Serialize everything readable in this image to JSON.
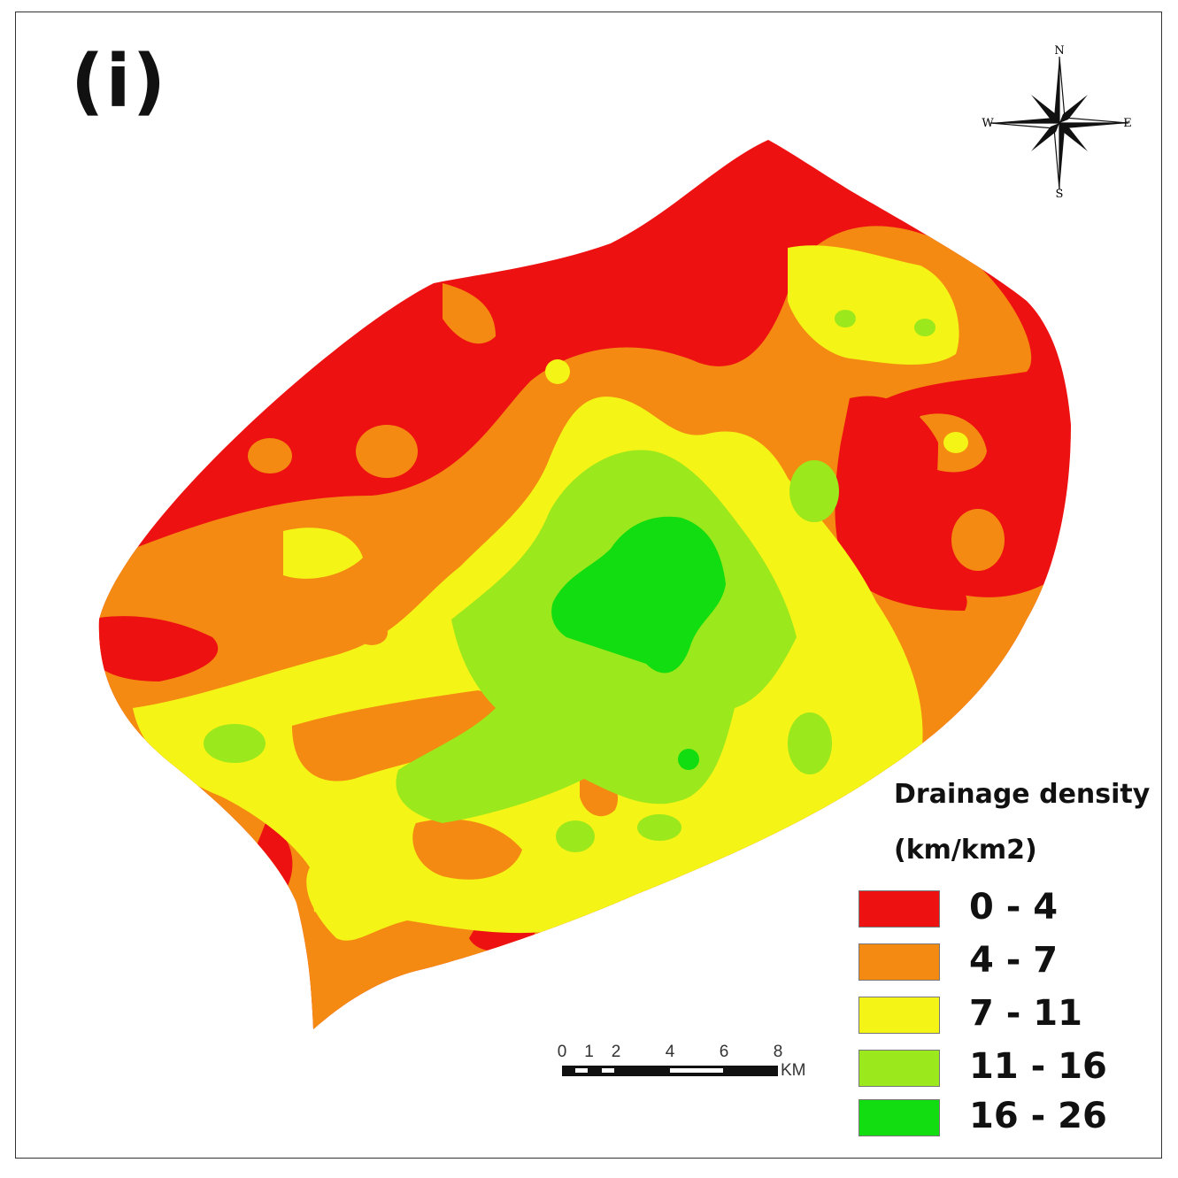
{
  "panel_label": "(i)",
  "compass": {
    "n": "N",
    "s": "S",
    "e": "E",
    "w": "W"
  },
  "scale_bar": {
    "ticks": [
      "0",
      "1",
      "2",
      "4",
      "6",
      "8"
    ],
    "unit": "KM"
  },
  "legend": {
    "title": "Drainage density",
    "units": "(km/km2)",
    "classes": [
      {
        "label": "0 - 4",
        "color": "#ee1111"
      },
      {
        "label": "4 - 7",
        "color": "#f48a12"
      },
      {
        "label": "7 - 11",
        "color": "#f4f416"
      },
      {
        "label": "11 - 16",
        "color": "#9be81c"
      },
      {
        "label": "16 - 26",
        "color": "#11dd11"
      }
    ]
  }
}
